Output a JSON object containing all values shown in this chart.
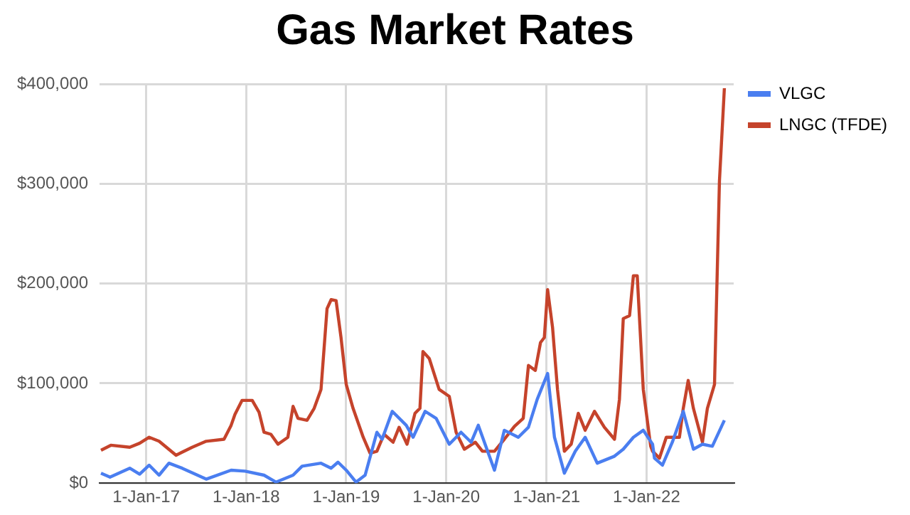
{
  "chart_data": {
    "type": "line",
    "title": "Gas Market Rates",
    "xlim": [
      "2016-07-15",
      "2022-11-15"
    ],
    "xticks": [
      {
        "value": "2017-01-01",
        "label": "1-Jan-17"
      },
      {
        "value": "2018-01-01",
        "label": "1-Jan-18"
      },
      {
        "value": "2019-01-01",
        "label": "1-Jan-19"
      },
      {
        "value": "2020-01-01",
        "label": "1-Jan-20"
      },
      {
        "value": "2021-01-01",
        "label": "1-Jan-21"
      },
      {
        "value": "2022-01-01",
        "label": "1-Jan-22"
      }
    ],
    "ylim": [
      0,
      400000
    ],
    "yticks": [
      {
        "value": 0,
        "label": "$0"
      },
      {
        "value": 100000,
        "label": "$100,000"
      },
      {
        "value": 200000,
        "label": "$200,000"
      },
      {
        "value": 300000,
        "label": "$300,000"
      },
      {
        "value": 400000,
        "label": "$400,000"
      }
    ],
    "grid": true,
    "legend": "right",
    "marker": "none",
    "line_style": "solid",
    "series": [
      {
        "name": "VLGC",
        "color": "#4a7ef0",
        "x": [
          "2016-07-20",
          "2016-08-22",
          "2016-11-02",
          "2016-12-08",
          "2017-01-12",
          "2017-02-17",
          "2017-03-25",
          "2017-05-12",
          "2017-08-08",
          "2017-11-07",
          "2017-12-28",
          "2018-03-07",
          "2018-04-20",
          "2018-06-21",
          "2018-07-24",
          "2018-10-01",
          "2018-11-07",
          "2018-12-02",
          "2019-01-01",
          "2019-02-06",
          "2019-03-11",
          "2019-04-23",
          "2019-05-12",
          "2019-06-18",
          "2019-08-08",
          "2019-09-02",
          "2019-10-16",
          "2019-11-25",
          "2020-01-12",
          "2020-02-24",
          "2020-04-01",
          "2020-04-27",
          "2020-06-25",
          "2020-07-31",
          "2020-09-20",
          "2020-10-27",
          "2020-11-28",
          "2021-01-05",
          "2021-01-30",
          "2021-03-07",
          "2021-04-16",
          "2021-05-22",
          "2021-07-05",
          "2021-09-06",
          "2021-10-08",
          "2021-11-14",
          "2021-12-20",
          "2022-01-23",
          "2022-01-30",
          "2022-02-28",
          "2022-04-05",
          "2022-05-15",
          "2022-06-21",
          "2022-07-24",
          "2022-08-29",
          "2022-10-12"
        ],
        "values": [
          10000,
          6000,
          15000,
          9000,
          18000,
          8000,
          20000,
          15000,
          4000,
          13000,
          12000,
          8000,
          1000,
          8000,
          17000,
          20000,
          15000,
          21000,
          13000,
          1000,
          8000,
          51000,
          44000,
          72000,
          58000,
          46000,
          72000,
          65000,
          39000,
          51000,
          41000,
          58000,
          13000,
          53000,
          46000,
          56000,
          84000,
          110000,
          46000,
          10000,
          32000,
          46000,
          20000,
          27000,
          34000,
          46000,
          53000,
          39000,
          25000,
          18000,
          41000,
          72000,
          34000,
          39000,
          37000,
          63000
        ]
      },
      {
        "name": "LNGC (TFDE)",
        "color": "#c5432b",
        "x": [
          "2016-07-20",
          "2016-08-25",
          "2016-11-02",
          "2016-12-08",
          "2017-01-12",
          "2017-02-17",
          "2017-04-20",
          "2017-06-18",
          "2017-08-08",
          "2017-10-12",
          "2017-11-07",
          "2017-11-21",
          "2017-12-17",
          "2018-01-23",
          "2018-02-17",
          "2018-03-07",
          "2018-04-01",
          "2018-04-27",
          "2018-06-02",
          "2018-06-21",
          "2018-07-09",
          "2018-08-11",
          "2018-09-06",
          "2018-10-01",
          "2018-10-23",
          "2018-11-07",
          "2018-11-25",
          "2018-12-13",
          "2019-01-01",
          "2019-01-26",
          "2019-03-04",
          "2019-03-29",
          "2019-04-23",
          "2019-05-19",
          "2019-06-21",
          "2019-07-13",
          "2019-08-11",
          "2019-09-09",
          "2019-09-27",
          "2019-10-08",
          "2019-10-31",
          "2019-12-06",
          "2020-01-12",
          "2020-02-06",
          "2020-03-07",
          "2020-04-16",
          "2020-05-12",
          "2020-06-25",
          "2020-07-31",
          "2020-09-06",
          "2020-10-08",
          "2020-10-27",
          "2020-11-21",
          "2020-12-10",
          "2020-12-24",
          "2021-01-05",
          "2021-01-23",
          "2021-02-10",
          "2021-03-07",
          "2021-04-01",
          "2021-04-27",
          "2021-05-22",
          "2021-06-25",
          "2021-07-31",
          "2021-09-06",
          "2021-09-24",
          "2021-10-08",
          "2021-10-31",
          "2021-11-14",
          "2021-11-28",
          "2021-12-20",
          "2022-01-16",
          "2022-01-23",
          "2022-02-17",
          "2022-03-14",
          "2022-05-01",
          "2022-05-15",
          "2022-06-02",
          "2022-06-21",
          "2022-07-24",
          "2022-08-11",
          "2022-09-06",
          "2022-09-24",
          "2022-10-12"
        ],
        "values": [
          33000,
          38000,
          36000,
          40000,
          46000,
          42000,
          28000,
          36000,
          42000,
          44000,
          58000,
          69000,
          83000,
          83000,
          71000,
          51000,
          49000,
          39000,
          46000,
          77000,
          65000,
          63000,
          75000,
          94000,
          175000,
          184000,
          183000,
          146000,
          99000,
          75000,
          46000,
          30000,
          32000,
          49000,
          41000,
          56000,
          39000,
          70000,
          75000,
          132000,
          125000,
          94000,
          87000,
          51000,
          34000,
          41000,
          32000,
          32000,
          44000,
          57000,
          65000,
          118000,
          113000,
          141000,
          146000,
          194000,
          156000,
          94000,
          32000,
          39000,
          70000,
          53000,
          72000,
          56000,
          44000,
          84000,
          165000,
          168000,
          208000,
          208000,
          94000,
          37000,
          32000,
          25000,
          46000,
          46000,
          75000,
          103000,
          75000,
          41000,
          75000,
          99000,
          303000,
          396000
        ]
      }
    ]
  }
}
